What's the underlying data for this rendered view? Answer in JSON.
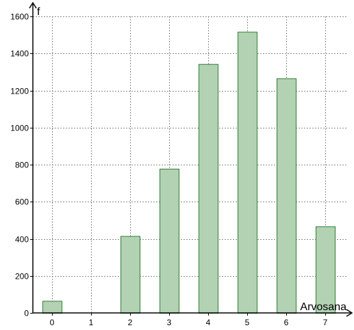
{
  "chart_data": {
    "type": "bar",
    "categories": [
      "0",
      "1",
      "2",
      "3",
      "4",
      "5",
      "6",
      "7"
    ],
    "values": [
      65,
      0,
      415,
      778,
      1343,
      1517,
      1266,
      467
    ],
    "title": "",
    "xlabel": "Arvosana",
    "ylabel": "f",
    "ylim": [
      0,
      1600
    ],
    "y_ticks": [
      "0",
      "200",
      "400",
      "600",
      "800",
      "1000",
      "1200",
      "1400",
      "1600"
    ],
    "grid": true,
    "colors": {
      "bar_fill": "#b3d1b3",
      "bar_stroke": "#2e7d32",
      "grid": "#8a8a8a",
      "axis": "#000000"
    }
  }
}
